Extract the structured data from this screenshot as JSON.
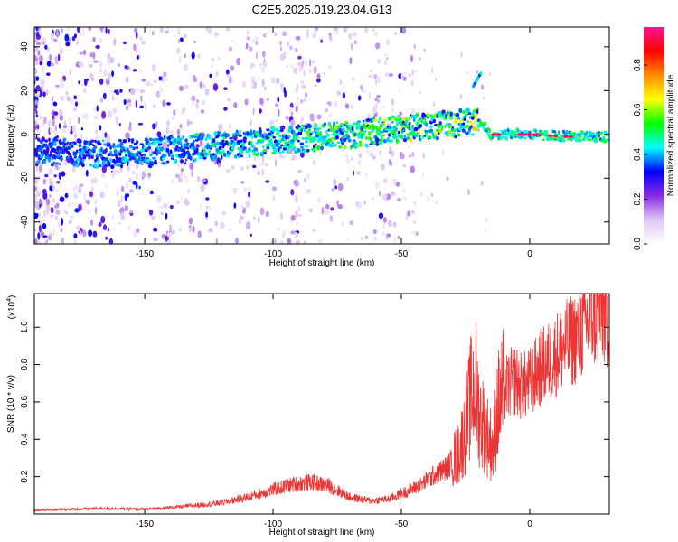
{
  "figure": {
    "title": "C2E5.2025.019.23.04.G13"
  },
  "chart_data": [
    {
      "type": "heatmap",
      "xlabel": "Height of straight line (km)",
      "ylabel": "Frequency (Hz)",
      "xlim": [
        -193,
        31
      ],
      "ylim": [
        -50,
        49
      ],
      "x_ticks": [
        -150,
        -100,
        -50,
        0
      ],
      "y_ticks": [
        40,
        20,
        0,
        -20,
        -40
      ],
      "grid": false,
      "colorbar": {
        "label": "Normalized spectral amplitude",
        "range": [
          0,
          0.97
        ],
        "ticks": [
          "0.0",
          "0.2",
          "0.4",
          "0.6",
          "0.8"
        ],
        "colormap": [
          "#ffffff",
          "#e0c8f5",
          "#8a2be2",
          "#0000ff",
          "#00ffff",
          "#00ff00",
          "#ffff00",
          "#ff8c00",
          "#ff0000",
          "#ff1493"
        ]
      },
      "ridge": {
        "description_points_x": [
          -185,
          -165,
          -150,
          -130,
          -110,
          -90,
          -70,
          -50,
          -35,
          -20,
          -15,
          0,
          15,
          31
        ],
        "description_points_y": [
          -8,
          -9,
          -8,
          -6,
          -4,
          -2,
          0,
          3,
          4,
          6,
          0,
          0,
          -1,
          -1
        ],
        "peak_amplitude": 0.97,
        "branch_x": [
          -22,
          -19
        ],
        "branch_y": [
          22,
          28
        ]
      }
    },
    {
      "type": "line",
      "xlabel": "Height of straight line (km)",
      "ylabel": "SNR (10 * v/v)",
      "y_scale_note": "(x10",
      "y_scale_exp": "4",
      "y_scale_close": ")",
      "xlim": [
        -193,
        31
      ],
      "ylim": [
        0,
        1.18
      ],
      "x_ticks": [
        -150,
        -100,
        -50,
        0
      ],
      "y_ticks": [
        "0.2",
        "0.4",
        "0.6",
        "0.8",
        "1.0"
      ],
      "series_color": "#ee3333",
      "series": [
        {
          "x": [
            -193,
            -180,
            -165,
            -150,
            -135,
            -120,
            -110,
            -100,
            -92,
            -85,
            -78,
            -70,
            -62,
            -55,
            -48,
            -42,
            -36,
            -32,
            -28,
            -25,
            -23,
            -21,
            -20,
            -18,
            -16,
            -14,
            -13,
            -10,
            -6,
            -3,
            0,
            4,
            8,
            12,
            16,
            20,
            24,
            28,
            31
          ],
          "y": [
            0.02,
            0.025,
            0.03,
            0.025,
            0.04,
            0.06,
            0.09,
            0.13,
            0.16,
            0.17,
            0.15,
            0.09,
            0.07,
            0.08,
            0.12,
            0.16,
            0.22,
            0.25,
            0.32,
            0.45,
            0.62,
            0.7,
            0.55,
            0.48,
            0.4,
            0.35,
            0.55,
            0.66,
            0.72,
            0.68,
            0.7,
            0.78,
            0.82,
            0.88,
            0.92,
            0.98,
            1.05,
            1.08,
            1.06
          ]
        }
      ]
    }
  ]
}
